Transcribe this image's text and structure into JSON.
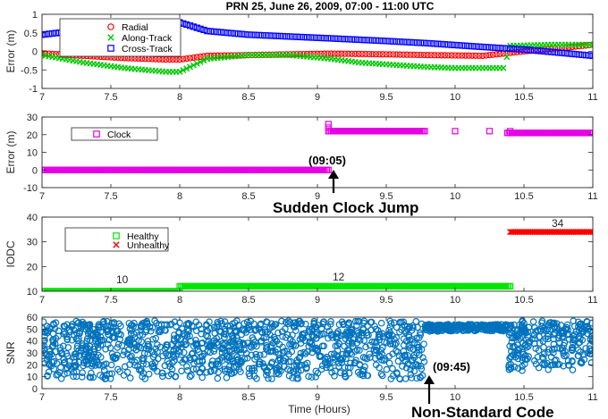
{
  "title": "PRN 25, June 26, 2009, 07:00 - 11:00 UTC",
  "xlabel": "Time (Hours)",
  "chart_data": [
    {
      "type": "scatter",
      "ylabel": "Error (m)",
      "xlim": [
        7,
        11
      ],
      "ylim": [
        -1,
        1
      ],
      "xticks": [
        "7",
        "7.5",
        "8",
        "8.5",
        "9",
        "9.5",
        "10",
        "10.5",
        "11"
      ],
      "yticks": [
        "-1",
        "-0.5",
        "0",
        "0.5",
        "1"
      ],
      "legend_position": "top-left",
      "series": [
        {
          "name": "Radial",
          "color": "#ff0000",
          "marker": "circle",
          "x": [
            7.0,
            7.3,
            7.6,
            7.9,
            8.0,
            8.2,
            8.5,
            8.8,
            9.1,
            9.5,
            9.8,
            10.2,
            10.5,
            10.8,
            11.0
          ],
          "y": [
            -0.05,
            -0.12,
            -0.18,
            -0.22,
            -0.22,
            -0.12,
            -0.1,
            -0.08,
            -0.06,
            -0.08,
            -0.1,
            -0.12,
            0.0,
            0.1,
            0.18
          ]
        },
        {
          "name": "Along-Track",
          "color": "#00c800",
          "marker": "x",
          "x": [
            7.0,
            7.3,
            7.6,
            7.9,
            8.0,
            8.2,
            8.5,
            8.8,
            9.1,
            9.3,
            9.5,
            9.8,
            10.0,
            10.35,
            10.4,
            10.7,
            11.0
          ],
          "y": [
            -0.1,
            -0.3,
            -0.45,
            -0.55,
            -0.55,
            -0.2,
            -0.1,
            -0.1,
            -0.2,
            -0.3,
            -0.35,
            -0.42,
            -0.45,
            -0.45,
            0.15,
            0.18,
            0.18
          ]
        },
        {
          "name": "Cross-Track",
          "color": "#0000ff",
          "marker": "square",
          "x": [
            7.0,
            7.3,
            7.6,
            7.9,
            8.0,
            8.2,
            8.5,
            8.8,
            9.1,
            9.5,
            9.8,
            10.2,
            10.5,
            10.8,
            11.0
          ],
          "y": [
            0.45,
            0.58,
            0.68,
            0.78,
            0.78,
            0.55,
            0.45,
            0.4,
            0.35,
            0.28,
            0.22,
            0.12,
            0.05,
            -0.05,
            -0.12
          ]
        }
      ]
    },
    {
      "type": "scatter",
      "ylabel": "Error (m)",
      "xlim": [
        7,
        11
      ],
      "ylim": [
        -10,
        30
      ],
      "xticks": [
        "7",
        "7.5",
        "8",
        "8.5",
        "9",
        "9.5",
        "10",
        "10.5",
        "11"
      ],
      "yticks": [
        "-10",
        "0",
        "10",
        "20",
        "30"
      ],
      "legend_position": "top-left",
      "series": [
        {
          "name": "Clock",
          "color": "#e600e6",
          "marker": "square",
          "segments": [
            {
              "x": [
                7.0,
                9.08
              ],
              "y": [
                0,
                0
              ]
            },
            {
              "x": [
                9.08,
                9.78
              ],
              "y": [
                22,
                22
              ]
            },
            {
              "x": [
                10.38,
                11.0
              ],
              "y": [
                21,
                21
              ]
            }
          ],
          "points": {
            "x": [
              9.08,
              9.08,
              10.0,
              10.25,
              10.4
            ],
            "y": [
              26,
              24,
              22,
              22,
              22
            ]
          }
        }
      ],
      "annotations": [
        {
          "text": "(09:05)"
        },
        {
          "text": "Sudden Clock Jump"
        }
      ]
    },
    {
      "type": "scatter",
      "ylabel": "IODC",
      "xlim": [
        7,
        11
      ],
      "ylim": [
        10,
        40
      ],
      "xticks": [
        "7",
        "7.5",
        "8",
        "8.5",
        "9",
        "9.5",
        "10",
        "10.5",
        "11"
      ],
      "yticks": [
        "10",
        "20",
        "30",
        "40"
      ],
      "legend_position": "top-left",
      "series": [
        {
          "name": "Healthy",
          "color": "#00e600",
          "marker": "square",
          "segments": [
            {
              "x": [
                7.0,
                8.0
              ],
              "y": [
                10,
                10
              ]
            },
            {
              "x": [
                8.0,
                10.4
              ],
              "y": [
                12,
                12
              ]
            }
          ]
        },
        {
          "name": "Unhealthy",
          "color": "#ff0000",
          "marker": "x",
          "segments": [
            {
              "x": [
                10.4,
                11.0
              ],
              "y": [
                34,
                34
              ]
            }
          ]
        }
      ],
      "annotations": [
        {
          "text": "10"
        },
        {
          "text": "12"
        },
        {
          "text": "34"
        }
      ]
    },
    {
      "type": "scatter",
      "ylabel": "SNR",
      "xlim": [
        7,
        11
      ],
      "ylim": [
        0,
        60
      ],
      "xticks": [
        "7",
        "7.5",
        "8",
        "8.5",
        "9",
        "9.5",
        "10",
        "10.5",
        "11"
      ],
      "yticks": [
        "0",
        "10",
        "20",
        "30",
        "40",
        "50",
        "60"
      ],
      "series": [
        {
          "name": "SNR",
          "color": "#0072bd",
          "marker": "circle",
          "x_ranges": [
            [
              7.0,
              9.78
            ],
            [
              9.78,
              10.38
            ],
            [
              10.38,
              11.0
            ]
          ],
          "y_ranges": [
            [
              8,
              57
            ],
            [
              48,
              54
            ],
            [
              15,
              57
            ]
          ]
        }
      ],
      "annotations": [
        {
          "text": "(09:45)"
        },
        {
          "text": "Non-Standard Code"
        }
      ]
    }
  ]
}
